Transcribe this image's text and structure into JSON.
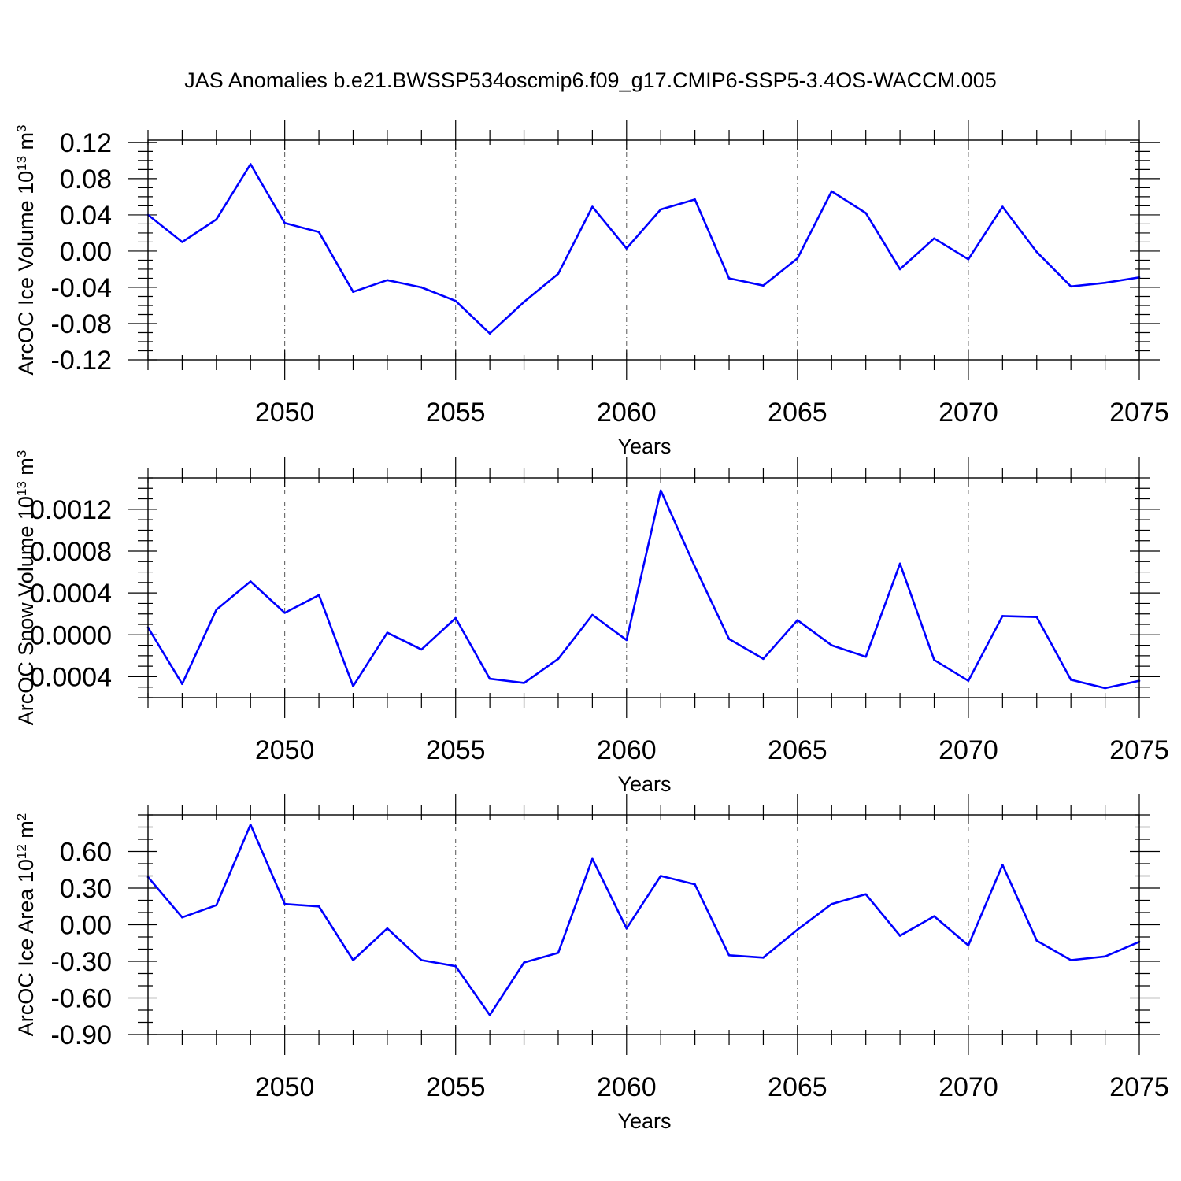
{
  "title": "JAS Anomalies b.e21.BWSSP534oscmip6.f09_g17.CMIP6-SSP5-3.4OS-WACCM.005",
  "colors": {
    "series": "#0000ff",
    "axis": "#000000",
    "grid": "#555555"
  },
  "chart_data": [
    {
      "type": "line",
      "id": "ice-volume",
      "ylabel_main": "ArcOC Ice Volume 10",
      "ylabel_exp": "13",
      "ylabel_unit": " m",
      "ylabel_unit_exp": "3",
      "xlabel": "Years",
      "xlim": [
        2046,
        2075
      ],
      "ylim": [
        -0.12,
        0.1225
      ],
      "major_yticks": [
        -0.12,
        -0.08,
        -0.04,
        0.0,
        0.04,
        0.08,
        0.12
      ],
      "ytick_labels": [
        "-0.12",
        "-0.08",
        "-0.04",
        "0.00",
        "0.04",
        "0.08",
        "0.12"
      ],
      "minor_ystep": 0.01,
      "xticks": [
        2050,
        2055,
        2060,
        2065,
        2070,
        2075
      ],
      "xtick_labels": [
        "2050",
        "2055",
        "2060",
        "2065",
        "2070",
        "2075"
      ],
      "x": [
        2046,
        2047,
        2048,
        2049,
        2050,
        2051,
        2052,
        2053,
        2054,
        2055,
        2056,
        2057,
        2058,
        2059,
        2060,
        2061,
        2062,
        2063,
        2064,
        2065,
        2066,
        2067,
        2068,
        2069,
        2070,
        2071,
        2072,
        2073,
        2074,
        2075
      ],
      "values": [
        0.04,
        0.01,
        0.035,
        0.096,
        0.031,
        0.021,
        -0.045,
        -0.032,
        -0.04,
        -0.055,
        -0.091,
        -0.056,
        -0.025,
        0.049,
        0.003,
        0.046,
        0.057,
        -0.03,
        -0.038,
        -0.008,
        0.066,
        0.042,
        -0.02,
        0.014,
        -0.009,
        0.049,
        -0.001,
        -0.039,
        -0.035,
        -0.029
      ]
    },
    {
      "type": "line",
      "id": "snow-volume",
      "ylabel_main": "ArcOC Snow Volume 10",
      "ylabel_exp": "13",
      "ylabel_unit": " m",
      "ylabel_unit_exp": "3",
      "xlabel": "Years",
      "xlim": [
        2046,
        2075
      ],
      "ylim": [
        -0.0006,
        0.0015
      ],
      "major_yticks": [
        -0.0004,
        0.0,
        0.0004,
        0.0008,
        0.0012
      ],
      "ytick_labels": [
        "-0.0004",
        "0.0000",
        "0.0004",
        "0.0008",
        "0.0012"
      ],
      "minor_ystep": 0.0001,
      "xticks": [
        2050,
        2055,
        2060,
        2065,
        2070,
        2075
      ],
      "xtick_labels": [
        "2050",
        "2055",
        "2060",
        "2065",
        "2070",
        "2075"
      ],
      "x": [
        2046,
        2047,
        2048,
        2049,
        2050,
        2051,
        2052,
        2053,
        2054,
        2055,
        2056,
        2057,
        2058,
        2059,
        2060,
        2061,
        2062,
        2063,
        2064,
        2065,
        2066,
        2067,
        2068,
        2069,
        2070,
        2071,
        2072,
        2073,
        2074,
        2075
      ],
      "values": [
        7e-05,
        -0.00047,
        0.00024,
        0.00051,
        0.00021,
        0.00038,
        -0.00049,
        2e-05,
        -0.00014,
        0.00016,
        -0.00042,
        -0.00046,
        -0.00023,
        0.00019,
        -5e-05,
        0.00138,
        0.00065,
        -4e-05,
        -0.00023,
        0.00014,
        -0.0001,
        -0.00021,
        0.00068,
        -0.00024,
        -0.00044,
        0.00018,
        0.00017,
        -0.00043,
        -0.00051,
        -0.00044
      ]
    },
    {
      "type": "line",
      "id": "ice-area",
      "ylabel_main": "ArcOC Ice Area 10",
      "ylabel_exp": "12",
      "ylabel_unit": " m",
      "ylabel_unit_exp": "2",
      "xlabel": "Years",
      "xlim": [
        2046,
        2075
      ],
      "ylim": [
        -0.9,
        0.9
      ],
      "major_yticks": [
        -0.9,
        -0.6,
        -0.3,
        0.0,
        0.3,
        0.6
      ],
      "ytick_labels": [
        "-0.90",
        "-0.60",
        "-0.30",
        "0.00",
        "0.30",
        "0.60"
      ],
      "minor_ystep": 0.1,
      "xticks": [
        2050,
        2055,
        2060,
        2065,
        2070,
        2075
      ],
      "xtick_labels": [
        "2050",
        "2055",
        "2060",
        "2065",
        "2070",
        "2075"
      ],
      "x": [
        2046,
        2047,
        2048,
        2049,
        2050,
        2051,
        2052,
        2053,
        2054,
        2055,
        2056,
        2057,
        2058,
        2059,
        2060,
        2061,
        2062,
        2063,
        2064,
        2065,
        2066,
        2067,
        2068,
        2069,
        2070,
        2071,
        2072,
        2073,
        2074,
        2075
      ],
      "values": [
        0.39,
        0.06,
        0.16,
        0.82,
        0.17,
        0.15,
        -0.29,
        -0.03,
        -0.29,
        -0.34,
        -0.74,
        -0.31,
        -0.23,
        0.54,
        -0.03,
        0.4,
        0.33,
        -0.25,
        -0.27,
        -0.04,
        0.17,
        0.25,
        -0.09,
        0.07,
        -0.17,
        0.49,
        -0.13,
        -0.29,
        -0.26,
        -0.14
      ]
    }
  ]
}
